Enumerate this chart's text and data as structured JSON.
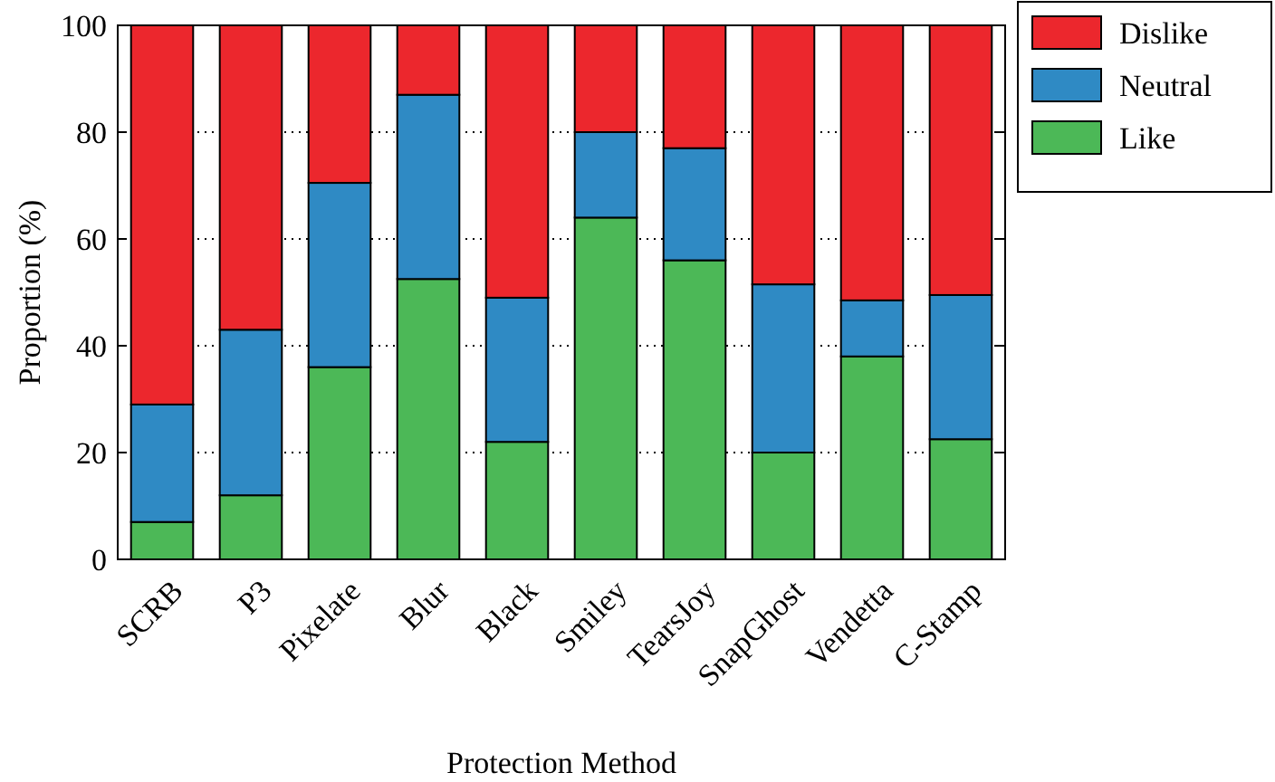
{
  "chart_data": {
    "type": "bar",
    "stacked": true,
    "xlabel": "Protection Method",
    "ylabel": "Proportion (%)",
    "categories": [
      "SCRB",
      "P3",
      "Pixelate",
      "Blur",
      "Black",
      "Smiley",
      "TearsJoy",
      "SnapGhost",
      "Vendetta",
      "C-Stamp"
    ],
    "series": [
      {
        "name": "Like",
        "color": "#4cb857",
        "values": [
          7,
          12,
          36,
          52.5,
          22,
          64,
          56,
          20,
          38,
          22.5
        ]
      },
      {
        "name": "Neutral",
        "color": "#2f8ac4",
        "values": [
          22,
          31,
          34.5,
          34.5,
          27,
          16,
          21,
          31.5,
          10.5,
          27
        ]
      },
      {
        "name": "Dislike",
        "color": "#ec272d",
        "values": [
          71,
          57,
          29.5,
          13,
          51,
          20,
          23,
          48.5,
          51.5,
          50.5
        ]
      }
    ],
    "ylim": [
      0,
      100
    ],
    "yticks": [
      0,
      20,
      40,
      60,
      80,
      100
    ],
    "grid": "y",
    "legend": "top right"
  }
}
